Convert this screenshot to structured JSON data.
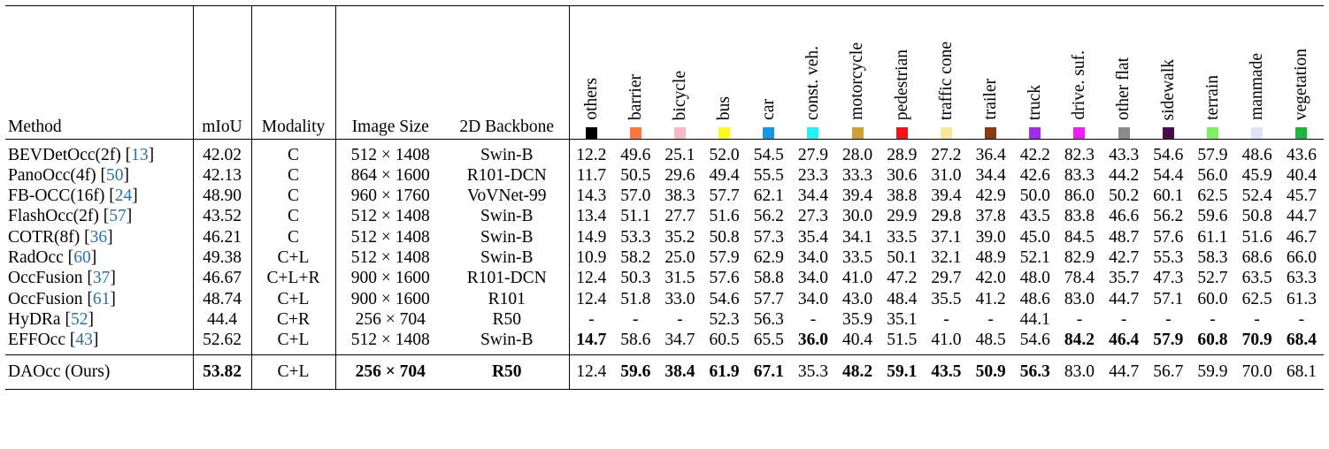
{
  "headers": {
    "method": "Method",
    "miou": "mIoU",
    "modality": "Modality",
    "image_size": "Image Size",
    "backbone": "2D Backbone"
  },
  "classes": [
    {
      "name": "others",
      "color": "#000000"
    },
    {
      "name": "barrier",
      "color": "#f97a3c"
    },
    {
      "name": "bicycle",
      "color": "#f9b8c8"
    },
    {
      "name": "bus",
      "color": "#fff71f"
    },
    {
      "name": "car",
      "color": "#1996e6"
    },
    {
      "name": "const. veh.",
      "color": "#23f2f2"
    },
    {
      "name": "motorcycle",
      "color": "#c9a230"
    },
    {
      "name": "pedestrian",
      "color": "#f2121b"
    },
    {
      "name": "traffic cone",
      "color": "#fbe79c"
    },
    {
      "name": "trailer",
      "color": "#8b3b14"
    },
    {
      "name": "truck",
      "color": "#9f2ee8"
    },
    {
      "name": "drive. suf.",
      "color": "#ef1ef4"
    },
    {
      "name": "other flat",
      "color": "#8a8a8a"
    },
    {
      "name": "sidewalk",
      "color": "#4b0a4c"
    },
    {
      "name": "terrain",
      "color": "#7ef05c"
    },
    {
      "name": "manmade",
      "color": "#e2e2f6"
    },
    {
      "name": "vegetation",
      "color": "#1fb63b"
    }
  ],
  "rows": [
    {
      "method": "BEVDetOcc(2f) [",
      "ref": "13",
      "close": "]",
      "miou": "42.02",
      "modality": "C",
      "image_size": "512 × 1408",
      "backbone": "Swin-B",
      "values": [
        "12.2",
        "49.6",
        "25.1",
        "52.0",
        "54.5",
        "27.9",
        "28.0",
        "28.9",
        "27.2",
        "36.4",
        "42.2",
        "82.3",
        "43.3",
        "54.6",
        "57.9",
        "48.6",
        "43.6"
      ],
      "bold": []
    },
    {
      "method": "PanoOcc(4f) [",
      "ref": "50",
      "close": "]",
      "miou": "42.13",
      "modality": "C",
      "image_size": "864 × 1600",
      "backbone": "R101-DCN",
      "values": [
        "11.7",
        "50.5",
        "29.6",
        "49.4",
        "55.5",
        "23.3",
        "33.3",
        "30.6",
        "31.0",
        "34.4",
        "42.6",
        "83.3",
        "44.2",
        "54.4",
        "56.0",
        "45.9",
        "40.4"
      ],
      "bold": []
    },
    {
      "method": "FB-OCC(16f) [",
      "ref": "24",
      "close": "]",
      "miou": "48.90",
      "modality": "C",
      "image_size": "960 × 1760",
      "backbone": "VoVNet-99",
      "values": [
        "14.3",
        "57.0",
        "38.3",
        "57.7",
        "62.1",
        "34.4",
        "39.4",
        "38.8",
        "39.4",
        "42.9",
        "50.0",
        "86.0",
        "50.2",
        "60.1",
        "62.5",
        "52.4",
        "45.7"
      ],
      "bold": []
    },
    {
      "method": "FlashOcc(2f) [",
      "ref": "57",
      "close": "]",
      "miou": "43.52",
      "modality": "C",
      "image_size": "512 × 1408",
      "backbone": "Swin-B",
      "values": [
        "13.4",
        "51.1",
        "27.7",
        "51.6",
        "56.2",
        "27.3",
        "30.0",
        "29.9",
        "29.8",
        "37.8",
        "43.5",
        "83.8",
        "46.6",
        "56.2",
        "59.6",
        "50.8",
        "44.7"
      ],
      "bold": []
    },
    {
      "method": "COTR(8f) [",
      "ref": "36",
      "close": "]",
      "miou": "46.21",
      "modality": "C",
      "image_size": "512 × 1408",
      "backbone": "Swin-B",
      "values": [
        "14.9",
        "53.3",
        "35.2",
        "50.8",
        "57.3",
        "35.4",
        "34.1",
        "33.5",
        "37.1",
        "39.0",
        "45.0",
        "84.5",
        "48.7",
        "57.6",
        "61.1",
        "51.6",
        "46.7"
      ],
      "bold": []
    },
    {
      "method": "RadOcc [",
      "ref": "60",
      "close": "]",
      "miou": "49.38",
      "modality": "C+L",
      "image_size": "512 × 1408",
      "backbone": "Swin-B",
      "values": [
        "10.9",
        "58.2",
        "25.0",
        "57.9",
        "62.9",
        "34.0",
        "33.5",
        "50.1",
        "32.1",
        "48.9",
        "52.1",
        "82.9",
        "42.7",
        "55.3",
        "58.3",
        "68.6",
        "66.0"
      ],
      "bold": []
    },
    {
      "method": "OccFusion [",
      "ref": "37",
      "close": "]",
      "miou": "46.67",
      "modality": "C+L+R",
      "image_size": "900 × 1600",
      "backbone": "R101-DCN",
      "values": [
        "12.4",
        "50.3",
        "31.5",
        "57.6",
        "58.8",
        "34.0",
        "41.0",
        "47.2",
        "29.7",
        "42.0",
        "48.0",
        "78.4",
        "35.7",
        "47.3",
        "52.7",
        "63.5",
        "63.3"
      ],
      "bold": []
    },
    {
      "method": "OccFusion [",
      "ref": "61",
      "close": "]",
      "miou": "48.74",
      "modality": "C+L",
      "image_size": "900 × 1600",
      "backbone": "R101",
      "values": [
        "12.4",
        "51.8",
        "33.0",
        "54.6",
        "57.7",
        "34.0",
        "43.0",
        "48.4",
        "35.5",
        "41.2",
        "48.6",
        "83.0",
        "44.7",
        "57.1",
        "60.0",
        "62.5",
        "61.3"
      ],
      "bold": []
    },
    {
      "method": "HyDRa [",
      "ref": "52",
      "close": "]",
      "miou": "44.4",
      "modality": "C+R",
      "image_size": "256 × 704",
      "backbone": "R50",
      "values": [
        "-",
        "-",
        "-",
        "52.3",
        "56.3",
        "-",
        "35.9",
        "35.1",
        "-",
        "-",
        "44.1",
        "-",
        "-",
        "-",
        "-",
        "-",
        "-"
      ],
      "bold": []
    },
    {
      "method": "EFFOcc [",
      "ref": "43",
      "close": "]",
      "miou": "52.62",
      "modality": "C+L",
      "image_size": "512 × 1408",
      "backbone": "Swin-B",
      "values": [
        "14.7",
        "58.6",
        "34.7",
        "60.5",
        "65.5",
        "36.0",
        "40.4",
        "51.5",
        "41.0",
        "48.5",
        "54.6",
        "84.2",
        "46.4",
        "57.9",
        "60.8",
        "70.9",
        "68.4"
      ],
      "bold": [
        0,
        5,
        11,
        12,
        13,
        14,
        15,
        16
      ]
    }
  ],
  "ours": {
    "method": "DAOcc (Ours)",
    "miou": "53.82",
    "modality": "C+L",
    "image_size": "256 × 704",
    "backbone": "R50",
    "values": [
      "12.4",
      "59.6",
      "38.4",
      "61.9",
      "67.1",
      "35.3",
      "48.2",
      "59.1",
      "43.5",
      "50.9",
      "56.3",
      "83.0",
      "44.7",
      "56.7",
      "59.9",
      "70.0",
      "68.1"
    ],
    "bold": [
      1,
      2,
      3,
      4,
      6,
      7,
      8,
      9,
      10
    ]
  }
}
